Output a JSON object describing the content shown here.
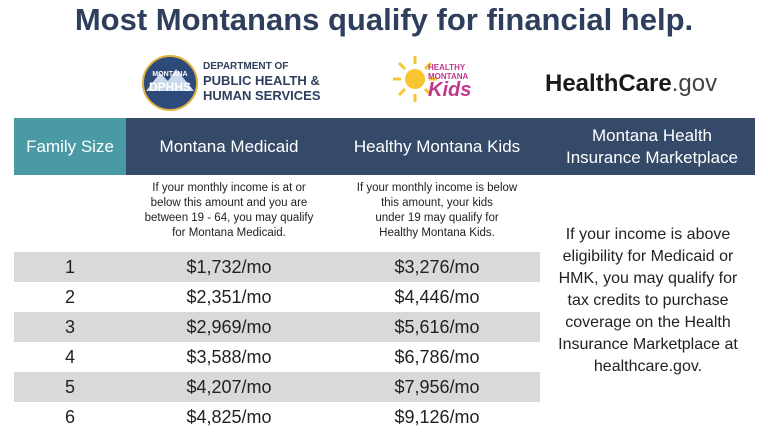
{
  "header": {
    "title": "Most Montanans qualify for financial help."
  },
  "logos": {
    "dphhs": {
      "badge_top": "MONTANA",
      "badge": "DPHHS",
      "lines": [
        "DEPARTMENT OF",
        "PUBLIC HEALTH &",
        "HUMAN SERVICES"
      ]
    },
    "hmk": {
      "lines": [
        "HEALTHY",
        "MONTANA"
      ],
      "script": "Kids"
    },
    "healthcare": {
      "name": "HealthCare",
      "suffix": ".gov"
    }
  },
  "table": {
    "columns": [
      "Family Size",
      "Montana Medicaid",
      "Healthy Montana Kids",
      "Montana Health Insurance Marketplace"
    ],
    "notes": [
      [
        "If your monthly income is at or",
        "below this amount and you are",
        "between 19 - 64, you may qualify",
        "for Montana Medicaid."
      ],
      [
        "If your monthly income is below",
        "this amount, your kids",
        "under 19 may qualify for",
        "Healthy Montana Kids."
      ]
    ],
    "rows": [
      [
        "1",
        "$1,732/mo",
        "$3,276/mo"
      ],
      [
        "2",
        "$2,351/mo",
        "$4,446/mo"
      ],
      [
        "3",
        "$2,969/mo",
        "$5,616/mo"
      ],
      [
        "4",
        "$3,588/mo",
        "$6,786/mo"
      ],
      [
        "5",
        "$4,207/mo",
        "$7,956/mo"
      ],
      [
        "6",
        "$4,825/mo",
        "$9,126/mo"
      ]
    ],
    "marketplace_note": [
      "If your income is above",
      "eligibility for Medicaid or",
      "HMK, you may qualify for",
      "tax credits to purchase",
      "coverage on the Health",
      "Insurance Marketplace at",
      "healthcare.gov."
    ]
  }
}
